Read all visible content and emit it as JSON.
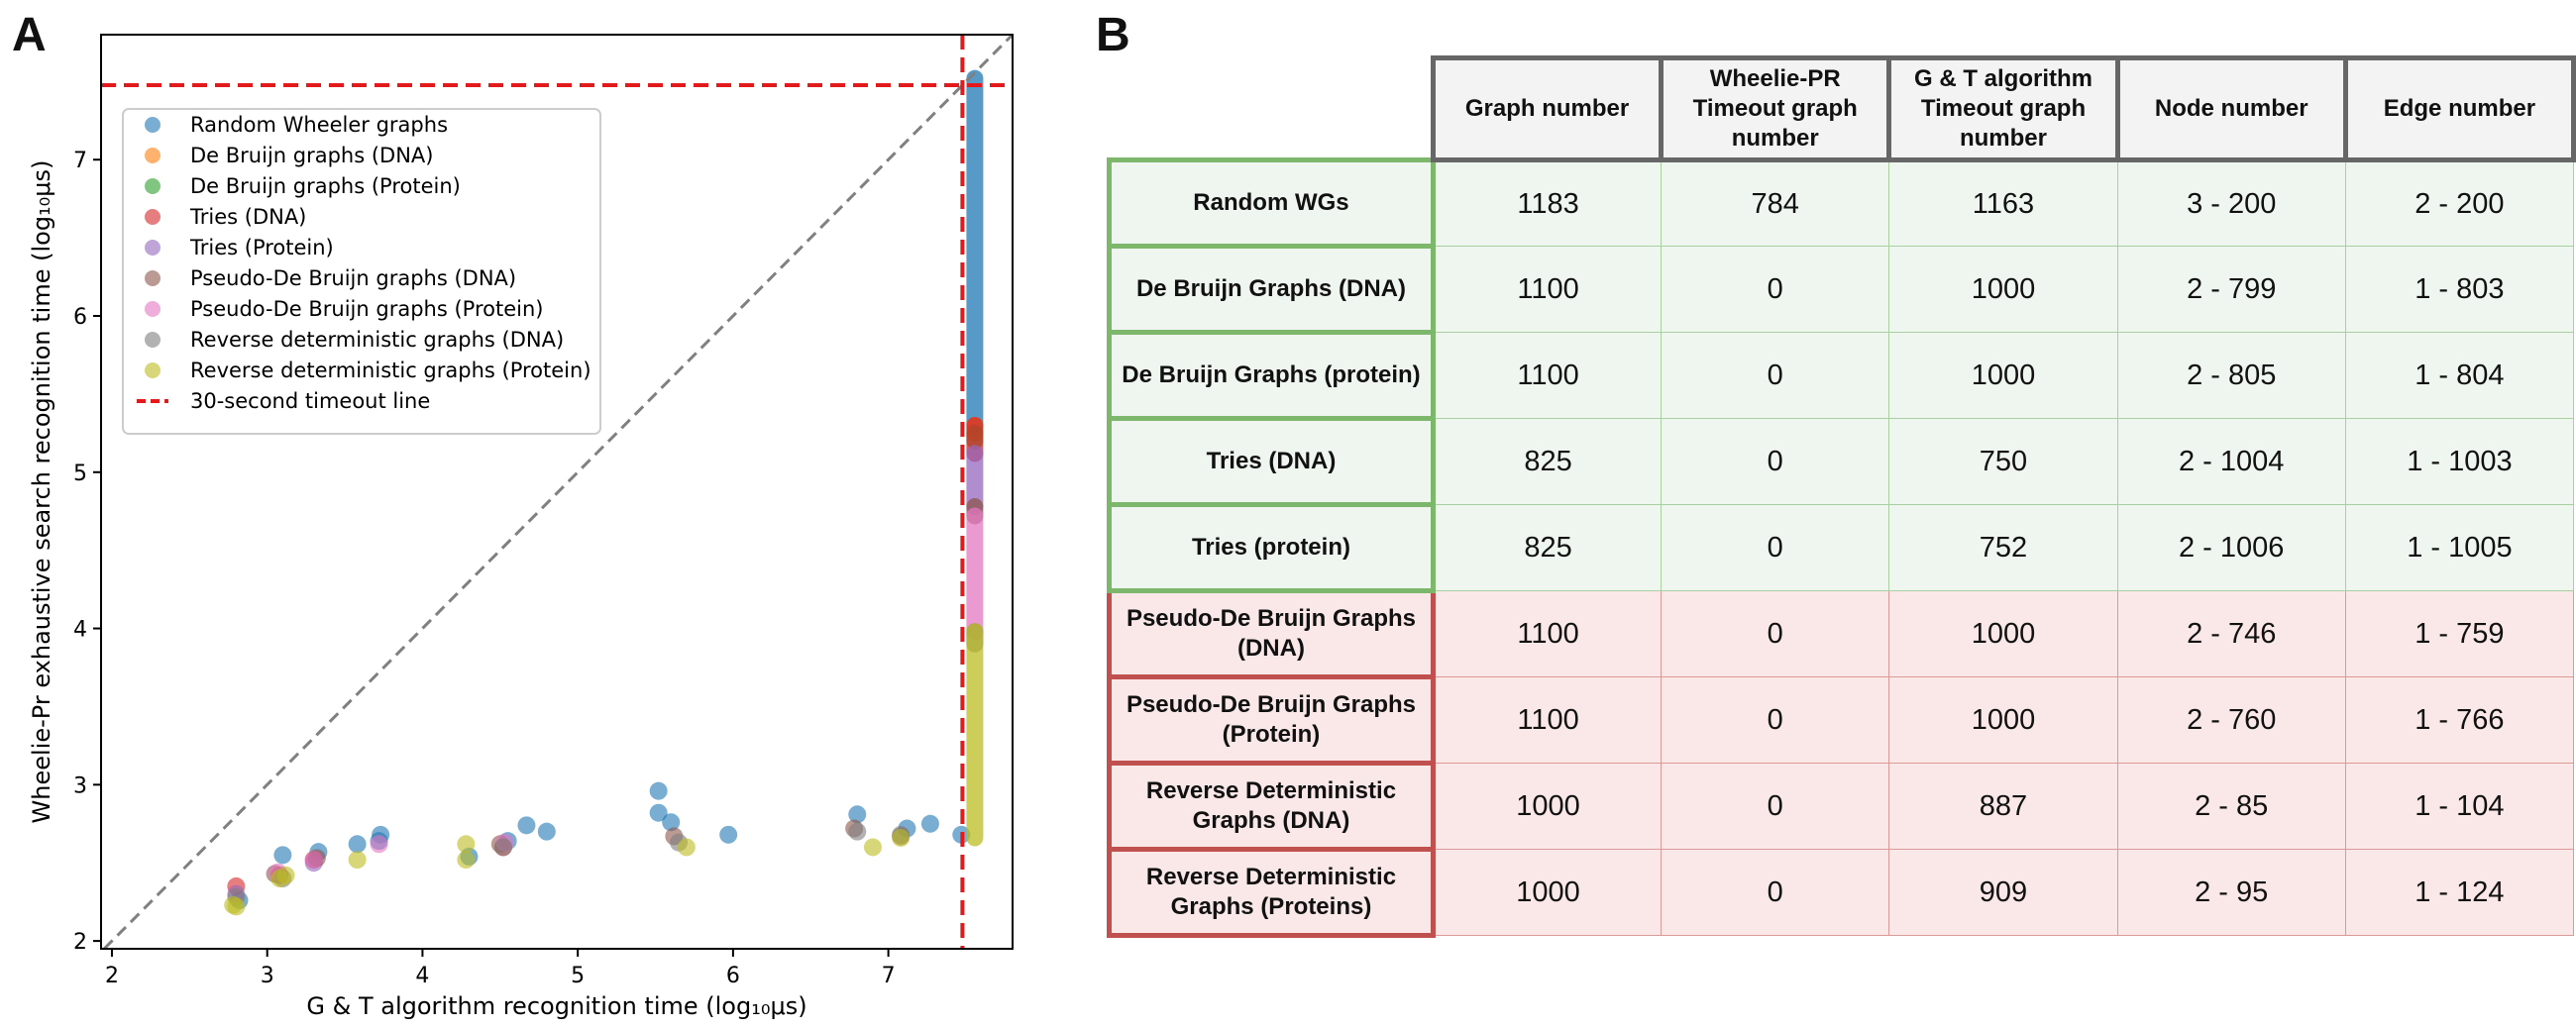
{
  "panel_labels": {
    "a": "A",
    "b": "B"
  },
  "colors": {
    "red_rows": "#c0504d",
    "green_rows": "#7db76c",
    "series": [
      "#1f77b4",
      "#ff7f0e",
      "#2ca02c",
      "#d62728",
      "#9467bd",
      "#8c564b",
      "#e377c2",
      "#7f7f7f",
      "#bcbd22"
    ]
  },
  "chart_data": {
    "type": "scatter",
    "title": "",
    "xlabel": "G & T algorithm recognition time (log₁₀μs)",
    "ylabel": "Wheelie-Pr exhaustive search recognition time (log₁₀μs)",
    "xlim": [
      1.93,
      7.8
    ],
    "ylim": [
      1.95,
      7.8
    ],
    "xticks": [
      2,
      3,
      4,
      5,
      6,
      7
    ],
    "yticks": [
      2,
      3,
      4,
      5,
      6,
      7
    ],
    "grid": false,
    "legend_position": "top-left",
    "timeout": {
      "x": 7.477,
      "y": 7.477,
      "label": "30-second timeout line"
    },
    "diagonal": true,
    "series": [
      {
        "name": "Random Wheeler graphs",
        "color": "#1f77b4",
        "points": [
          [
            3.1,
            2.55
          ],
          [
            3.33,
            2.57
          ],
          [
            3.58,
            2.62
          ],
          [
            3.73,
            2.68
          ],
          [
            4.67,
            2.74
          ],
          [
            4.8,
            2.7
          ],
          [
            5.52,
            2.96
          ],
          [
            5.52,
            2.82
          ],
          [
            5.6,
            2.76
          ],
          [
            5.97,
            2.68
          ],
          [
            6.8,
            2.81
          ],
          [
            7.12,
            2.72
          ],
          [
            7.27,
            2.75
          ],
          [
            7.47,
            2.68
          ],
          [
            2.82,
            2.26
          ],
          [
            3.72,
            2.64
          ],
          [
            4.3,
            2.54
          ],
          [
            4.55,
            2.64
          ]
        ],
        "timeout_band": [
          5.3,
          7.52
        ]
      },
      {
        "name": "De Bruijn graphs (DNA)",
        "color": "#ff7f0e",
        "points": [],
        "timeout_band": [
          5.25,
          5.3
        ]
      },
      {
        "name": "De Bruijn graphs (Protein)",
        "color": "#2ca02c",
        "points": [],
        "timeout_band": [
          5.2,
          5.25
        ]
      },
      {
        "name": "Tries (DNA)",
        "color": "#d62728",
        "points": [
          [
            2.8,
            2.35
          ],
          [
            3.08,
            2.42
          ],
          [
            3.3,
            2.52
          ],
          [
            4.52,
            2.6
          ]
        ],
        "timeout_band": [
          5.12,
          5.3
        ]
      },
      {
        "name": "Tries (Protein)",
        "color": "#9467bd",
        "points": [
          [
            2.8,
            2.3
          ],
          [
            3.3,
            2.5
          ]
        ],
        "timeout_band": [
          4.78,
          5.12
        ]
      },
      {
        "name": "Pseudo-De Bruijn graphs (DNA)",
        "color": "#8c564b",
        "points": [
          [
            3.05,
            2.43
          ],
          [
            3.32,
            2.53
          ],
          [
            4.5,
            2.62
          ],
          [
            5.62,
            2.67
          ],
          [
            6.78,
            2.72
          ],
          [
            7.08,
            2.67
          ]
        ],
        "timeout_band": [
          4.72,
          4.78
        ]
      },
      {
        "name": "Pseudo-De Bruijn graphs (Protein)",
        "color": "#e377c2",
        "points": [
          [
            3.07,
            2.44
          ],
          [
            3.3,
            2.52
          ],
          [
            3.72,
            2.62
          ],
          [
            4.53,
            2.63
          ]
        ],
        "timeout_band": [
          3.98,
          4.72
        ]
      },
      {
        "name": "Reverse deterministic graphs (DNA)",
        "color": "#7f7f7f",
        "points": [
          [
            2.8,
            2.28
          ],
          [
            3.1,
            2.4
          ],
          [
            4.52,
            2.6
          ],
          [
            5.65,
            2.63
          ],
          [
            6.8,
            2.7
          ],
          [
            7.08,
            2.68
          ]
        ],
        "timeout_band": [
          3.9,
          3.98
        ]
      },
      {
        "name": "Reverse deterministic graphs (Protein)",
        "color": "#bcbd22",
        "points": [
          [
            2.78,
            2.23
          ],
          [
            2.8,
            2.22
          ],
          [
            3.08,
            2.4
          ],
          [
            3.12,
            2.42
          ],
          [
            3.58,
            2.52
          ],
          [
            4.28,
            2.52
          ],
          [
            4.28,
            2.62
          ],
          [
            5.7,
            2.6
          ],
          [
            6.9,
            2.6
          ],
          [
            7.08,
            2.66
          ]
        ],
        "timeout_band": [
          2.66,
          3.98
        ]
      }
    ]
  },
  "table": {
    "headers": [
      "Graph number",
      "Wheelie-PR Timeout graph number",
      "G & T algorithm Timeout graph number",
      "Node number",
      "Edge number"
    ],
    "rows": [
      {
        "label": "Random WGs",
        "group": "green",
        "cells": [
          "1183",
          "784",
          "1163",
          "3 - 200",
          "2 - 200"
        ]
      },
      {
        "label": "De Bruijn Graphs (DNA)",
        "group": "green",
        "cells": [
          "1100",
          "0",
          "1000",
          "2 - 799",
          "1 - 803"
        ]
      },
      {
        "label": "De Bruijn Graphs (protein)",
        "group": "green",
        "cells": [
          "1100",
          "0",
          "1000",
          "2 - 805",
          "1 - 804"
        ]
      },
      {
        "label": "Tries (DNA)",
        "group": "green",
        "cells": [
          "825",
          "0",
          "750",
          "2 - 1004",
          "1 - 1003"
        ]
      },
      {
        "label": "Tries (protein)",
        "group": "green",
        "cells": [
          "825",
          "0",
          "752",
          "2 - 1006",
          "1 - 1005"
        ]
      },
      {
        "label": "Pseudo-De Bruijn Graphs (DNA)",
        "group": "red",
        "cells": [
          "1100",
          "0",
          "1000",
          "2 - 746",
          "1 - 759"
        ]
      },
      {
        "label": "Pseudo-De Bruijn Graphs (Protein)",
        "group": "red",
        "cells": [
          "1100",
          "0",
          "1000",
          "2 - 760",
          "1 - 766"
        ]
      },
      {
        "label": "Reverse Deterministic Graphs (DNA)",
        "group": "red",
        "cells": [
          "1000",
          "0",
          "887",
          "2 - 85",
          "1 - 104"
        ]
      },
      {
        "label": "Reverse Deterministic Graphs (Proteins)",
        "group": "red",
        "cells": [
          "1000",
          "0",
          "909",
          "2 - 95",
          "1 - 124"
        ]
      }
    ]
  }
}
